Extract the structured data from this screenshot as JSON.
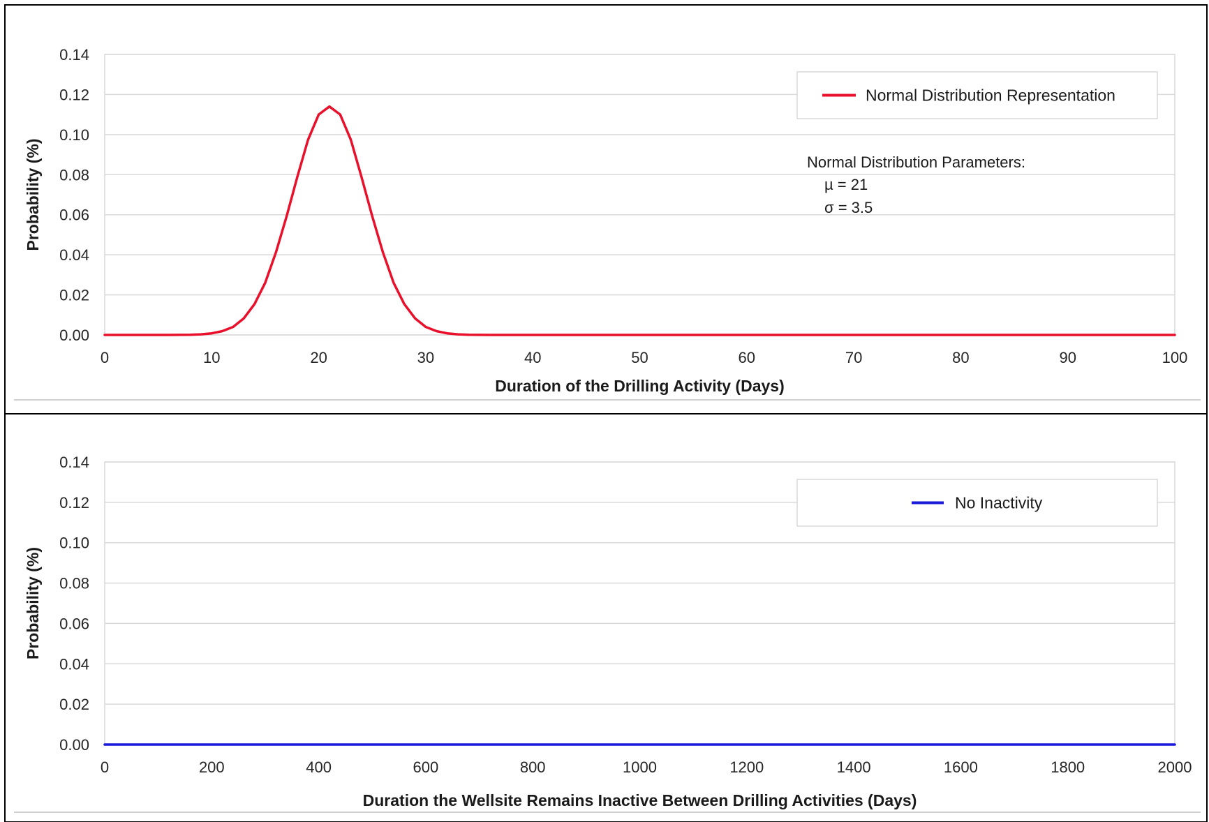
{
  "chart_data": [
    {
      "type": "line",
      "xlabel": "Duration of the Drilling Activity (Days)",
      "ylabel": "Probability (%)",
      "xlim": [
        0,
        100
      ],
      "ylim": [
        0,
        0.14
      ],
      "xticks": [
        "0",
        "10",
        "20",
        "30",
        "40",
        "50",
        "60",
        "70",
        "80",
        "90",
        "100"
      ],
      "yticks": [
        "0.00",
        "0.02",
        "0.04",
        "0.06",
        "0.08",
        "0.10",
        "0.12",
        "0.14"
      ],
      "grid": true,
      "legend_position": "top-right",
      "series": [
        {
          "name": "Normal Distribution Representation",
          "color": "#e8102a",
          "x": [
            0,
            4,
            6,
            8,
            9,
            10,
            11,
            12,
            13,
            14,
            15,
            16,
            17,
            18,
            19,
            20,
            21,
            22,
            23,
            24,
            25,
            26,
            27,
            28,
            29,
            30,
            31,
            32,
            33,
            34,
            36,
            40,
            50,
            60,
            70,
            80,
            90,
            100
          ],
          "y": [
            0.0,
            0.0,
            0.0,
            0.0001,
            0.0003,
            0.0008,
            0.0019,
            0.004,
            0.0083,
            0.0154,
            0.026,
            0.0412,
            0.0592,
            0.0788,
            0.0974,
            0.11,
            0.114,
            0.11,
            0.0974,
            0.0788,
            0.0592,
            0.0412,
            0.026,
            0.0154,
            0.0083,
            0.004,
            0.0019,
            0.0008,
            0.0003,
            0.0001,
            0.0,
            0.0,
            0.0,
            0.0,
            0.0,
            0.0,
            0.0,
            0.0
          ]
        }
      ],
      "annotations": {
        "heading": "Normal Distribution Parameters:",
        "mu": "µ = 21",
        "sigma": "σ = 3.5"
      }
    },
    {
      "type": "line",
      "xlabel": "Duration the Wellsite Remains Inactive Between Drilling Activities (Days)",
      "ylabel": "Probability (%)",
      "xlim": [
        0,
        2000
      ],
      "ylim": [
        0,
        0.14
      ],
      "xticks": [
        "0",
        "200",
        "400",
        "600",
        "800",
        "1000",
        "1200",
        "1400",
        "1600",
        "1800",
        "2000"
      ],
      "yticks": [
        "0.00",
        "0.02",
        "0.04",
        "0.06",
        "0.08",
        "0.10",
        "0.12",
        "0.14"
      ],
      "grid": true,
      "legend_position": "top-right",
      "series": [
        {
          "name": "No Inactivity",
          "color": "#1a1adb",
          "x": [
            0,
            2000
          ],
          "y": [
            0,
            0
          ]
        }
      ]
    }
  ]
}
